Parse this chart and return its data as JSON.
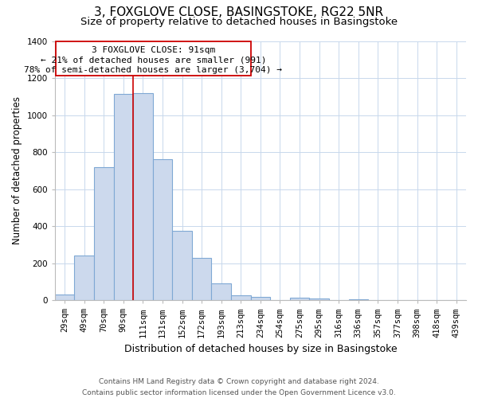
{
  "title": "3, FOXGLOVE CLOSE, BASINGSTOKE, RG22 5NR",
  "subtitle": "Size of property relative to detached houses in Basingstoke",
  "xlabel": "Distribution of detached houses by size in Basingstoke",
  "ylabel": "Number of detached properties",
  "bin_labels": [
    "29sqm",
    "49sqm",
    "70sqm",
    "90sqm",
    "111sqm",
    "131sqm",
    "152sqm",
    "172sqm",
    "193sqm",
    "213sqm",
    "234sqm",
    "254sqm",
    "275sqm",
    "295sqm",
    "316sqm",
    "336sqm",
    "357sqm",
    "377sqm",
    "398sqm",
    "418sqm",
    "439sqm"
  ],
  "bar_heights": [
    30,
    240,
    720,
    1115,
    1120,
    760,
    375,
    228,
    90,
    28,
    18,
    0,
    15,
    10,
    0,
    5,
    0,
    0,
    0,
    0,
    0
  ],
  "bar_color": "#ccd9ed",
  "bar_edge_color": "#7fa8d4",
  "ylim": [
    0,
    1400
  ],
  "yticks": [
    0,
    200,
    400,
    600,
    800,
    1000,
    1200,
    1400
  ],
  "annotation_title": "3 FOXGLOVE CLOSE: 91sqm",
  "annotation_line1": "← 21% of detached houses are smaller (991)",
  "annotation_line2": "78% of semi-detached houses are larger (3,704) →",
  "annotation_box_color": "#ffffff",
  "annotation_border_color": "#cc0000",
  "footer_line1": "Contains HM Land Registry data © Crown copyright and database right 2024.",
  "footer_line2": "Contains public sector information licensed under the Open Government Licence v3.0.",
  "bg_color": "#ffffff",
  "grid_color": "#c8d8ec",
  "title_fontsize": 11,
  "subtitle_fontsize": 9.5,
  "xlabel_fontsize": 9,
  "ylabel_fontsize": 8.5,
  "tick_fontsize": 7.5,
  "annotation_fontsize": 8,
  "footer_fontsize": 6.5
}
